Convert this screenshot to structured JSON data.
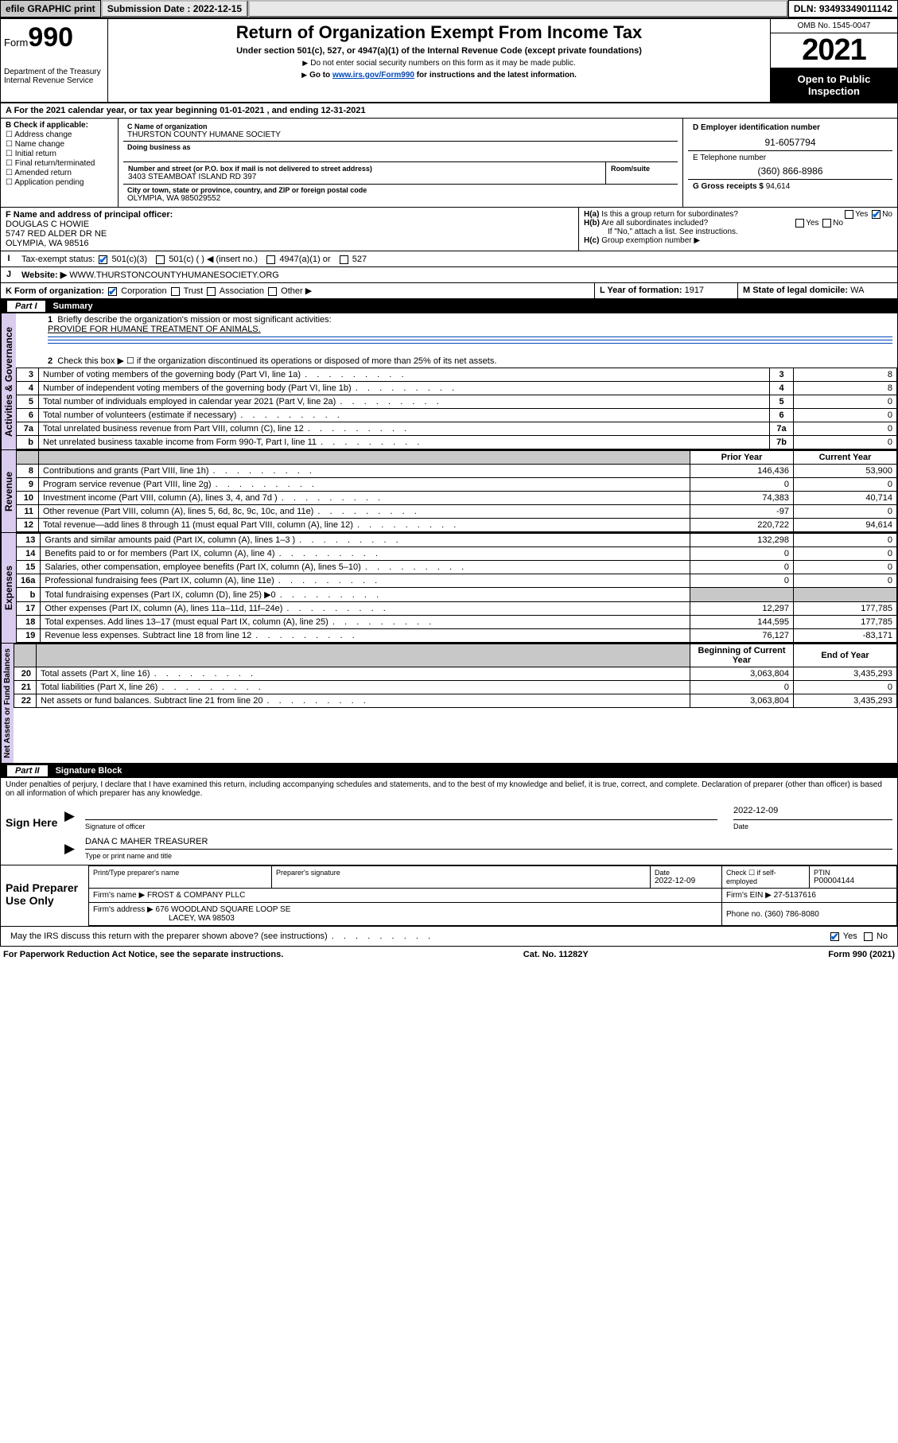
{
  "topbar": {
    "efile": "efile GRAPHIC print",
    "submission_label": "Submission Date : 2022-12-15",
    "dln": "DLN: 93493349011142"
  },
  "header": {
    "form_prefix": "Form",
    "form_no": "990",
    "dept": "Department of the Treasury Internal Revenue Service",
    "title": "Return of Organization Exempt From Income Tax",
    "subtitle": "Under section 501(c), 527, or 4947(a)(1) of the Internal Revenue Code (except private foundations)",
    "note1": "Do not enter social security numbers on this form as it may be made public.",
    "note2_pre": "Go to ",
    "note2_link": "www.irs.gov/Form990",
    "note2_post": " for instructions and the latest information.",
    "omb": "OMB No. 1545-0047",
    "year": "2021",
    "open": "Open to Public Inspection"
  },
  "period": {
    "label_a": "A For the 2021 calendar year, or tax year beginning ",
    "begin": "01-01-2021",
    "mid": " , and ending ",
    "end": "12-31-2021"
  },
  "blockB": {
    "title": "B Check if applicable:",
    "items": [
      "Address change",
      "Name change",
      "Initial return",
      "Final return/terminated",
      "Amended return",
      "Application pending"
    ]
  },
  "blockC": {
    "name_label": "C Name of organization",
    "name": "THURSTON COUNTY HUMANE SOCIETY",
    "dba_label": "Doing business as",
    "addr_label": "Number and street (or P.O. box if mail is not delivered to street address)",
    "room_label": "Room/suite",
    "addr": "3403 STEAMBOAT ISLAND RD 397",
    "city_label": "City or town, state or province, country, and ZIP or foreign postal code",
    "city": "OLYMPIA, WA  985029552"
  },
  "blockD": {
    "label": "D Employer identification number",
    "value": "91-6057794"
  },
  "blockE": {
    "label": "E Telephone number",
    "value": "(360) 866-8986"
  },
  "blockG": {
    "label": "G Gross receipts $",
    "value": "94,614"
  },
  "blockF": {
    "label": "F Name and address of principal officer:",
    "line1": "DOUGLAS C HOWIE",
    "line2": "5747 RED ALDER DR NE",
    "line3": "OLYMPIA, WA  98516"
  },
  "blockH": {
    "ha": "Is this a group return for subordinates?",
    "hb": "Are all subordinates included?",
    "hb_note": "If \"No,\" attach a list. See instructions.",
    "hc": "Group exemption number ▶",
    "yes": "Yes",
    "no": "No"
  },
  "blockI": {
    "label": "Tax-exempt status:",
    "opts": [
      "501(c)(3)",
      "501(c) (  ) ◀ (insert no.)",
      "4947(a)(1) or",
      "527"
    ]
  },
  "blockJ": {
    "label": "Website: ▶",
    "value": "WWW.THURSTONCOUNTYHUMANESOCIETY.ORG"
  },
  "blockK": {
    "label": "K Form of organization:",
    "opts": [
      "Corporation",
      "Trust",
      "Association",
      "Other ▶"
    ]
  },
  "blockL": {
    "label": "L Year of formation:",
    "value": "1917"
  },
  "blockM": {
    "label": "M State of legal domicile:",
    "value": "WA"
  },
  "part1": {
    "title": "Summary",
    "q1": "Briefly describe the organization's mission or most significant activities:",
    "mission": "PROVIDE FOR HUMANE TREATMENT OF ANIMALS.",
    "q2": "Check this box ▶ ☐  if the organization discontinued its operations or disposed of more than 25% of its net assets.",
    "governance_label": "Activities & Governance",
    "revenue_label": "Revenue",
    "expenses_label": "Expenses",
    "netassets_label": "Net Assets or Fund Balances",
    "prior_hdr": "Prior Year",
    "current_hdr": "Current Year",
    "boy_hdr": "Beginning of Current Year",
    "eoy_hdr": "End of Year",
    "gov_rows": [
      {
        "n": "3",
        "desc": "Number of voting members of the governing body (Part VI, line 1a)",
        "box": "3",
        "val": "8"
      },
      {
        "n": "4",
        "desc": "Number of independent voting members of the governing body (Part VI, line 1b)",
        "box": "4",
        "val": "8"
      },
      {
        "n": "5",
        "desc": "Total number of individuals employed in calendar year 2021 (Part V, line 2a)",
        "box": "5",
        "val": "0"
      },
      {
        "n": "6",
        "desc": "Total number of volunteers (estimate if necessary)",
        "box": "6",
        "val": "0"
      },
      {
        "n": "7a",
        "desc": "Total unrelated business revenue from Part VIII, column (C), line 12",
        "box": "7a",
        "val": "0"
      },
      {
        "n": "b",
        "desc": "Net unrelated business taxable income from Form 990-T, Part I, line 11",
        "box": "7b",
        "val": "0"
      }
    ],
    "rev_rows": [
      {
        "n": "8",
        "desc": "Contributions and grants (Part VIII, line 1h)",
        "py": "146,436",
        "cy": "53,900"
      },
      {
        "n": "9",
        "desc": "Program service revenue (Part VIII, line 2g)",
        "py": "0",
        "cy": "0"
      },
      {
        "n": "10",
        "desc": "Investment income (Part VIII, column (A), lines 3, 4, and 7d )",
        "py": "74,383",
        "cy": "40,714"
      },
      {
        "n": "11",
        "desc": "Other revenue (Part VIII, column (A), lines 5, 6d, 8c, 9c, 10c, and 11e)",
        "py": "-97",
        "cy": "0"
      },
      {
        "n": "12",
        "desc": "Total revenue—add lines 8 through 11 (must equal Part VIII, column (A), line 12)",
        "py": "220,722",
        "cy": "94,614"
      }
    ],
    "exp_rows": [
      {
        "n": "13",
        "desc": "Grants and similar amounts paid (Part IX, column (A), lines 1–3 )",
        "py": "132,298",
        "cy": "0"
      },
      {
        "n": "14",
        "desc": "Benefits paid to or for members (Part IX, column (A), line 4)",
        "py": "0",
        "cy": "0"
      },
      {
        "n": "15",
        "desc": "Salaries, other compensation, employee benefits (Part IX, column (A), lines 5–10)",
        "py": "0",
        "cy": "0"
      },
      {
        "n": "16a",
        "desc": "Professional fundraising fees (Part IX, column (A), line 11e)",
        "py": "0",
        "cy": "0"
      },
      {
        "n": "b",
        "desc": "Total fundraising expenses (Part IX, column (D), line 25) ▶0",
        "py": "",
        "cy": "",
        "shade": true
      },
      {
        "n": "17",
        "desc": "Other expenses (Part IX, column (A), lines 11a–11d, 11f–24e)",
        "py": "12,297",
        "cy": "177,785"
      },
      {
        "n": "18",
        "desc": "Total expenses. Add lines 13–17 (must equal Part IX, column (A), line 25)",
        "py": "144,595",
        "cy": "177,785"
      },
      {
        "n": "19",
        "desc": "Revenue less expenses. Subtract line 18 from line 12",
        "py": "76,127",
        "cy": "-83,171"
      }
    ],
    "net_rows": [
      {
        "n": "20",
        "desc": "Total assets (Part X, line 16)",
        "py": "3,063,804",
        "cy": "3,435,293"
      },
      {
        "n": "21",
        "desc": "Total liabilities (Part X, line 26)",
        "py": "0",
        "cy": "0"
      },
      {
        "n": "22",
        "desc": "Net assets or fund balances. Subtract line 21 from line 20",
        "py": "3,063,804",
        "cy": "3,435,293"
      }
    ]
  },
  "part2": {
    "title": "Signature Block",
    "declaration": "Under penalties of perjury, I declare that I have examined this return, including accompanying schedules and statements, and to the best of my knowledge and belief, it is true, correct, and complete. Declaration of preparer (other than officer) is based on all information of which preparer has any knowledge.",
    "sign_label": "Sign Here",
    "sig_officer": "Signature of officer",
    "date_label": "Date",
    "sig_date": "2022-12-09",
    "officer_name": "DANA C MAHER  TREASURER",
    "name_title_label": "Type or print name and title",
    "paid_label": "Paid Preparer Use Only",
    "prep_name_label": "Print/Type preparer's name",
    "prep_sig_label": "Preparer's signature",
    "prep_date_label": "Date",
    "prep_date": "2022-12-09",
    "self_emp": "Check ☐ if self-employed",
    "ptin_label": "PTIN",
    "ptin": "P00004144",
    "firm_name_label": "Firm's name    ▶",
    "firm_name": "FROST & COMPANY PLLC",
    "firm_ein_label": "Firm's EIN ▶",
    "firm_ein": "27-5137616",
    "firm_addr_label": "Firm's address ▶",
    "firm_addr1": "676 WOODLAND SQUARE LOOP SE",
    "firm_addr2": "LACEY, WA  98503",
    "firm_phone_label": "Phone no.",
    "firm_phone": "(360) 786-8080",
    "discuss": "May the IRS discuss this return with the preparer shown above? (see instructions)"
  },
  "footer": {
    "left": "For Paperwork Reduction Act Notice, see the separate instructions.",
    "mid": "Cat. No. 11282Y",
    "right_pre": "Form ",
    "right_form": "990",
    "right_post": " (2021)"
  },
  "colors": {
    "sidelabel_bg": "#d9ccee",
    "link": "#0047bb",
    "check": "#0066d6"
  }
}
